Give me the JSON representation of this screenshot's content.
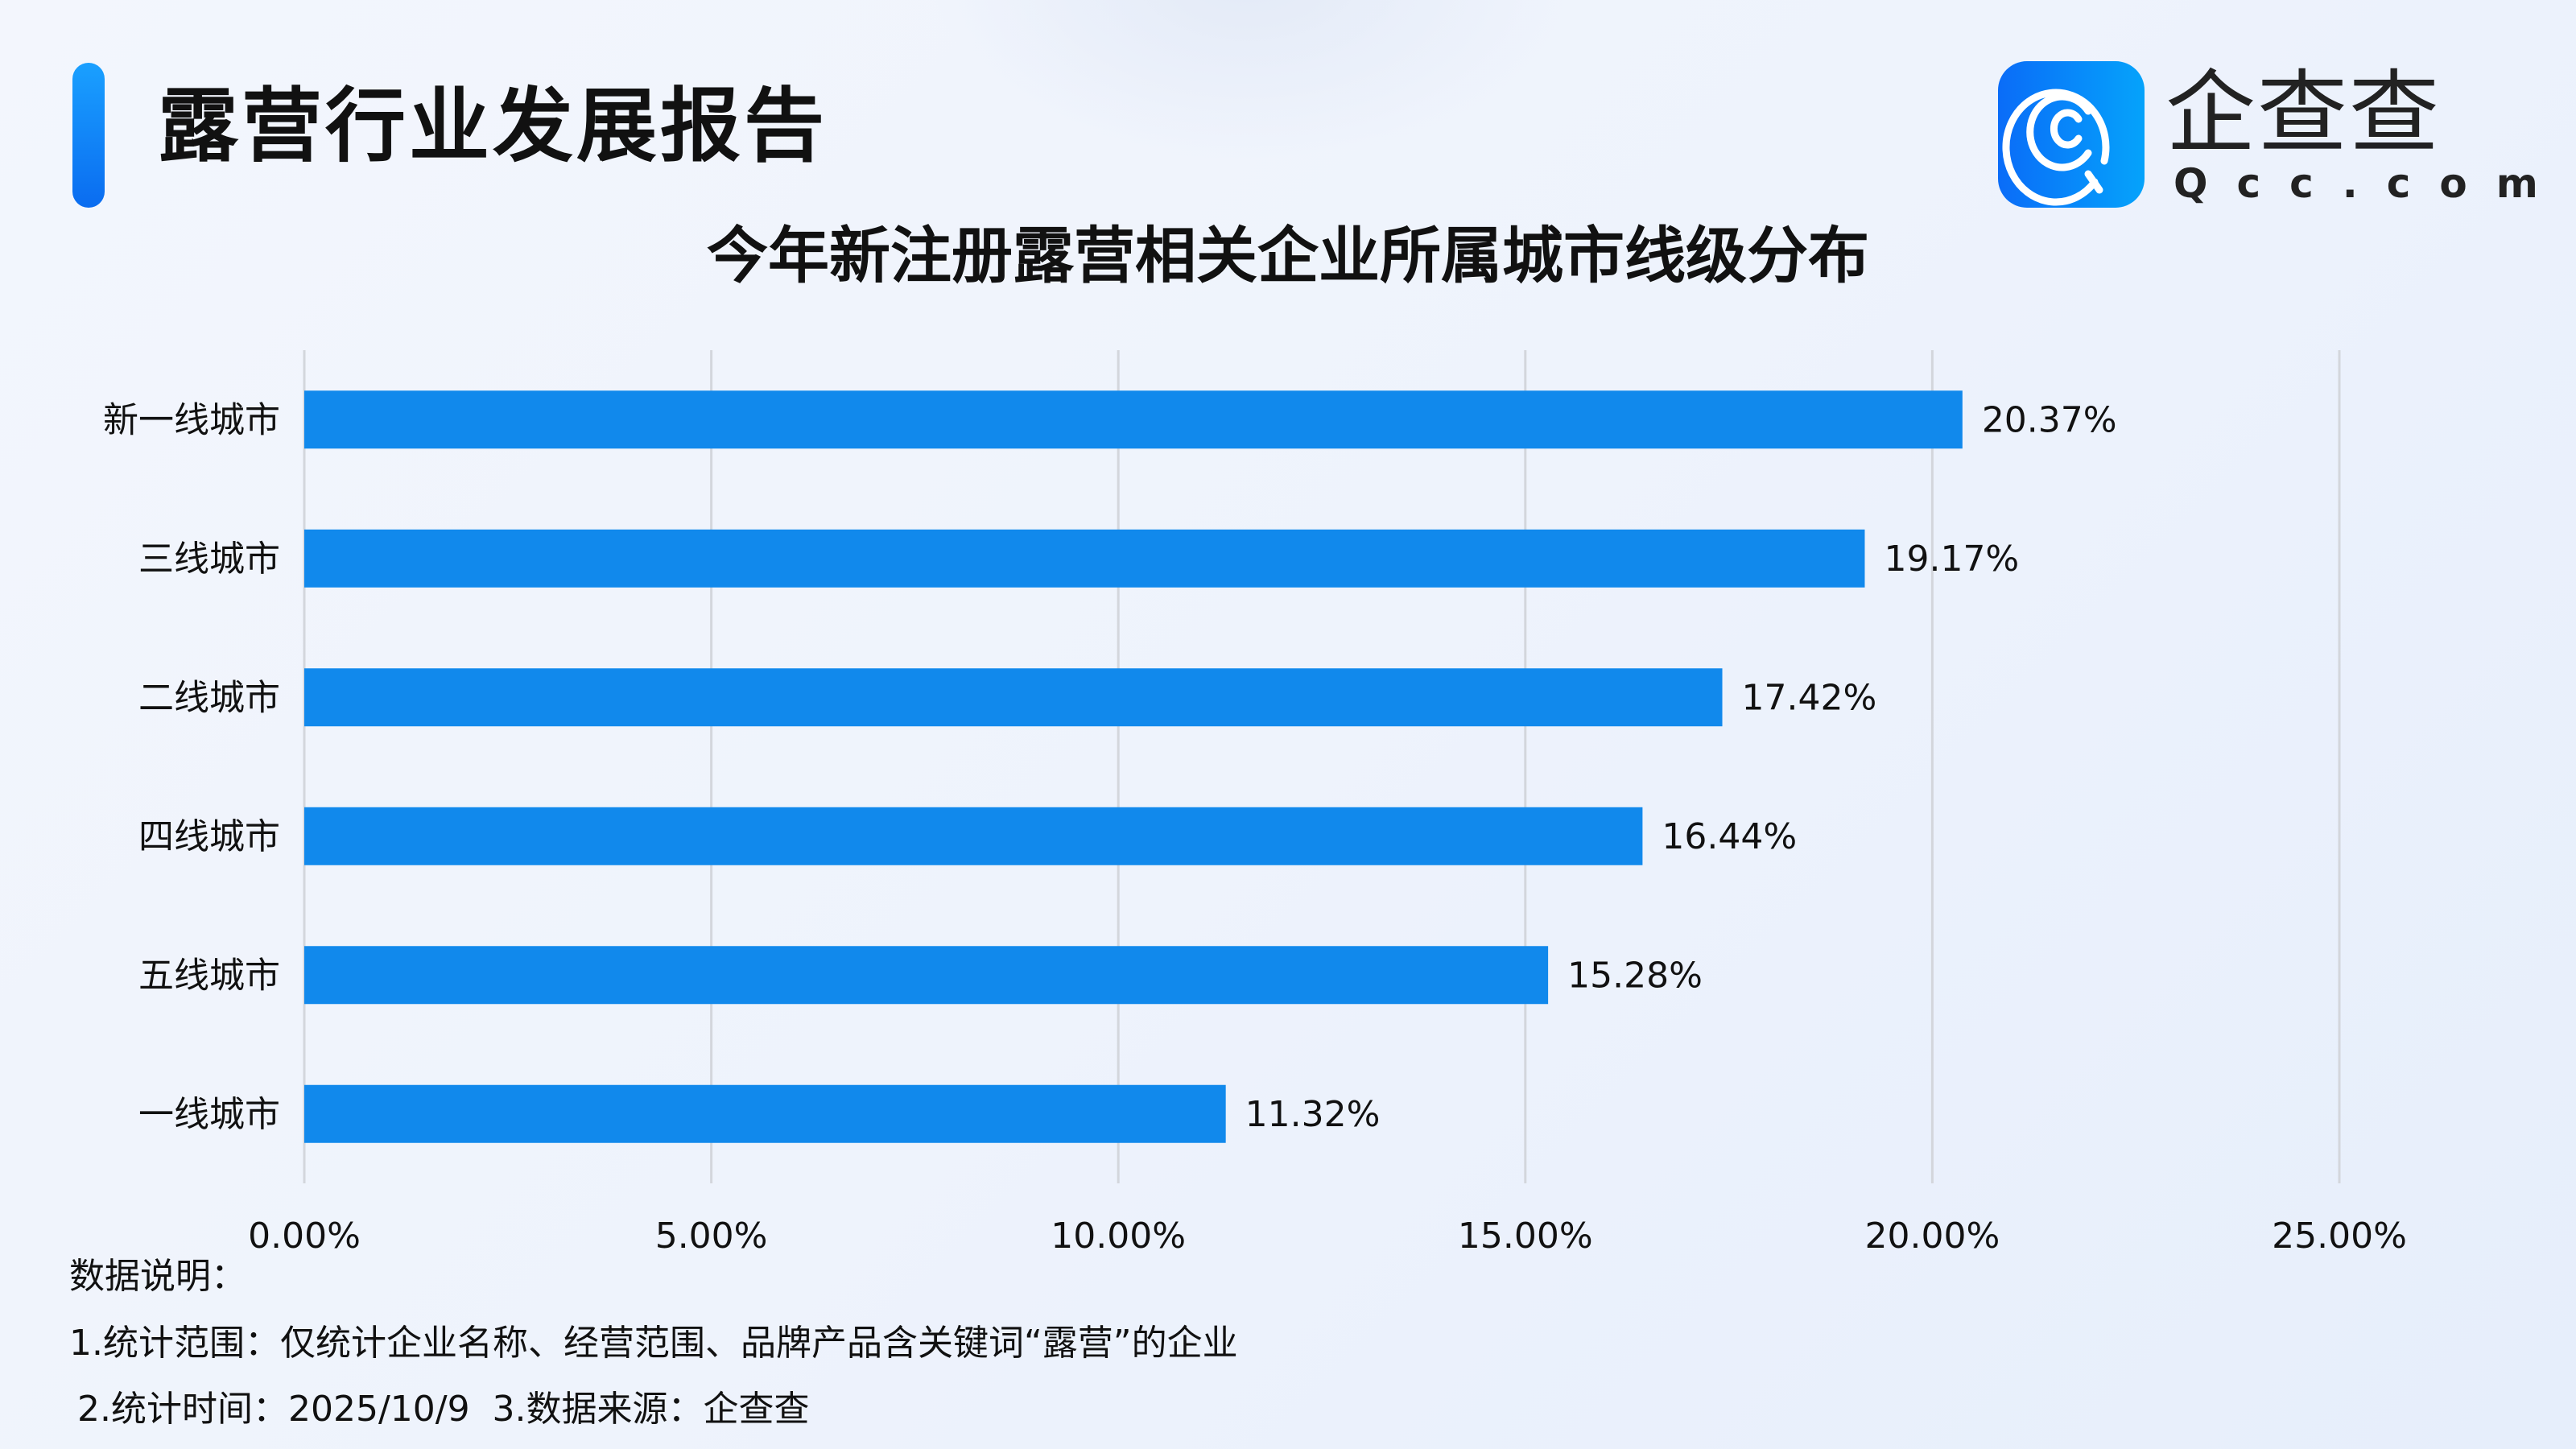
{
  "header": {
    "title": "露营行业发展报告",
    "logo_cn": "企查查",
    "logo_en": "Qcc.com",
    "accent_color": "#1189f0"
  },
  "chart_data": {
    "type": "bar",
    "orientation": "horizontal",
    "title": "今年新注册露营相关企业所属城市线级分布",
    "categories": [
      "新一线城市",
      "三线城市",
      "二线城市",
      "四线城市",
      "五线城市",
      "一线城市"
    ],
    "values": [
      20.37,
      19.17,
      17.42,
      16.44,
      15.28,
      11.32
    ],
    "value_labels": [
      "20.37%",
      "19.17%",
      "17.42%",
      "16.44%",
      "15.28%",
      "11.32%"
    ],
    "xlim": [
      0,
      25
    ],
    "x_ticks": [
      0,
      5,
      10,
      15,
      20,
      25
    ],
    "x_tick_labels": [
      "0.00%",
      "5.00%",
      "10.00%",
      "15.00%",
      "20.00%",
      "25.00%"
    ],
    "grid": "vertical",
    "bar_color": "#1189ec",
    "xlabel": "",
    "ylabel": ""
  },
  "notes": {
    "heading": "数据说明：",
    "line1": "1.统计范围：仅统计企业名称、经营范围、品牌产品含关键词“露营”的企业",
    "line2": "2.统计时间：2025/10/9  3.数据来源：企查查"
  }
}
